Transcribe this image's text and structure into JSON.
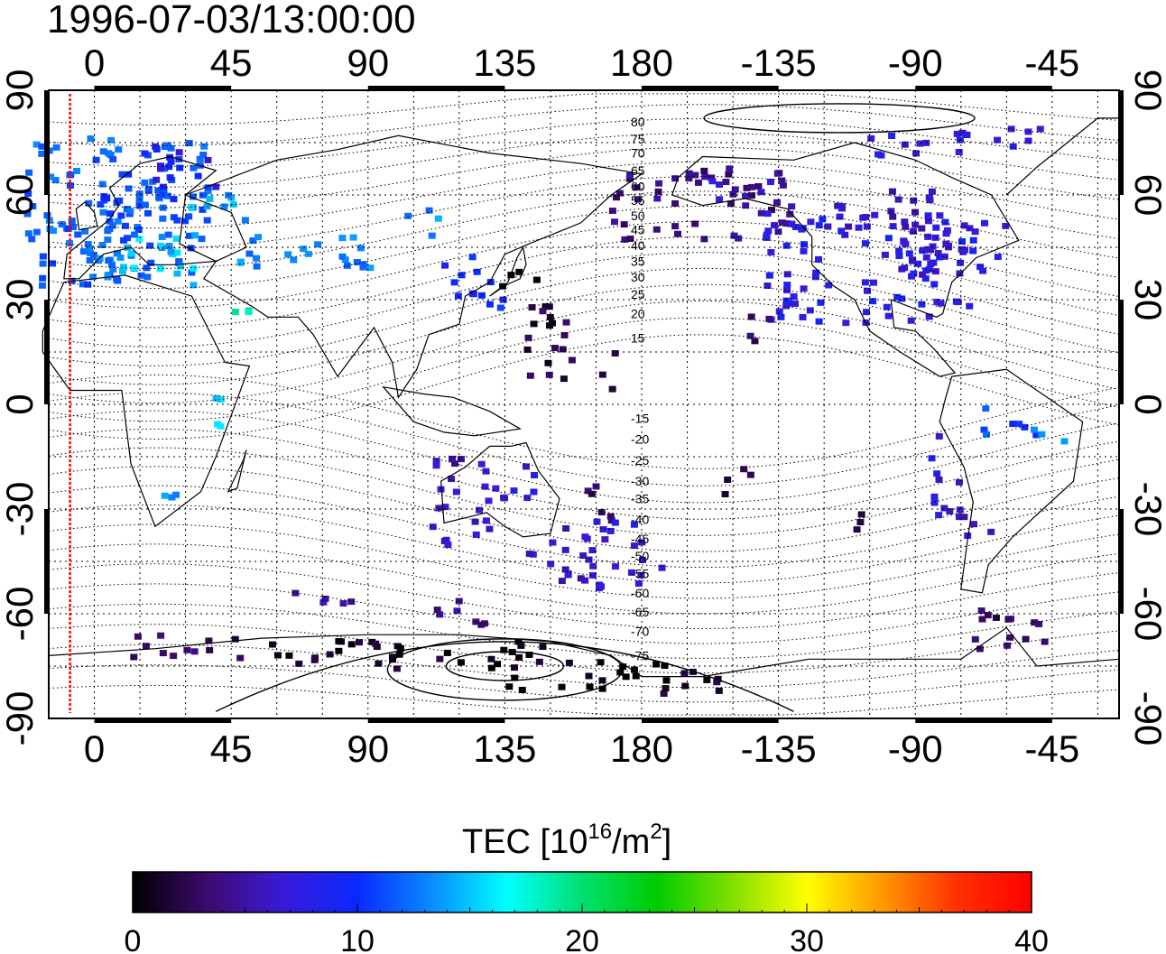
{
  "title": "1996-07-03/13:00:00",
  "colorbar": {
    "label_main": "TEC  [10",
    "label_sup1": "16",
    "label_mid": "/m",
    "label_sup2": "2",
    "label_end": "]",
    "ticks": [
      "0",
      "10",
      "20",
      "30",
      "40"
    ],
    "min": 0,
    "max": 40,
    "colors": [
      "#000000",
      "#3c0a6e",
      "#3a1ad8",
      "#0a28ff",
      "#0a8cff",
      "#00ffff",
      "#00e070",
      "#00cc00",
      "#80e000",
      "#ffff00",
      "#ff9900",
      "#ff3000",
      "#ff0000"
    ]
  },
  "map": {
    "lon_ticks_top": [
      "0",
      "45",
      "90",
      "135",
      "180",
      "-135",
      "-90",
      "-45"
    ],
    "lon_ticks_bottom": [
      "0",
      "45",
      "90",
      "135",
      "180",
      "-135",
      "-90",
      "-45"
    ],
    "lat_ticks": [
      "90",
      "60",
      "30",
      "0",
      "-30",
      "-60",
      "-90"
    ],
    "lon_values": [
      0,
      45,
      90,
      135,
      180,
      225,
      270,
      315
    ],
    "lat_values": [
      90,
      60,
      30,
      0,
      -30,
      -60,
      -90
    ],
    "lon_range": [
      -15,
      337
    ],
    "lat_range": [
      -90,
      90
    ],
    "terminator_lon": -8,
    "mag_lat_labels": [
      {
        "label": "80",
        "lat": 81
      },
      {
        "label": "75",
        "lat": 76
      },
      {
        "label": "70",
        "lat": 72
      },
      {
        "label": "65",
        "lat": 67
      },
      {
        "label": "60",
        "lat": 62.5
      },
      {
        "label": "55",
        "lat": 58.5
      },
      {
        "label": "50",
        "lat": 54
      },
      {
        "label": "45",
        "lat": 50
      },
      {
        "label": "40",
        "lat": 45.5
      },
      {
        "label": "35",
        "lat": 41
      },
      {
        "label": "30",
        "lat": 36.5
      },
      {
        "label": "25",
        "lat": 31.5
      },
      {
        "label": "20",
        "lat": 26
      },
      {
        "label": "15",
        "lat": 19
      },
      {
        "label": "-15",
        "lat": -4
      },
      {
        "label": "-20",
        "lat": -10
      },
      {
        "label": "-25",
        "lat": -16
      },
      {
        "label": "-30",
        "lat": -22
      },
      {
        "label": "-35",
        "lat": -27
      },
      {
        "label": "-40",
        "lat": -33
      },
      {
        "label": "-45",
        "lat": -38.5
      },
      {
        "label": "-50",
        "lat": -43.5
      },
      {
        "label": "-55",
        "lat": -48.5
      },
      {
        "label": "-60",
        "lat": -54
      },
      {
        "label": "-65",
        "lat": -59.5
      },
      {
        "label": "-70",
        "lat": -65
      },
      {
        "label": "-75",
        "lat": -72
      }
    ],
    "tec_patches": [
      {
        "lon": 8,
        "lat": 55,
        "w": 30,
        "h": 22,
        "tec": 12
      },
      {
        "lon": 18,
        "lat": 63,
        "w": 18,
        "h": 12,
        "tec": 11
      },
      {
        "lon": 30,
        "lat": 68,
        "w": 10,
        "h": 6,
        "tec": 8
      },
      {
        "lon": 20,
        "lat": 42,
        "w": 14,
        "h": 8,
        "tec": 15
      },
      {
        "lon": 5,
        "lat": 48,
        "w": 10,
        "h": 8,
        "tec": 13
      },
      {
        "lon": 40,
        "lat": 55,
        "w": 10,
        "h": 5,
        "tec": 14
      },
      {
        "lon": 70,
        "lat": 44,
        "w": 22,
        "h": 6,
        "tec": 13
      },
      {
        "lon": 108,
        "lat": 52,
        "w": 6,
        "h": 4,
        "tec": 13
      },
      {
        "lon": 50,
        "lat": 28,
        "w": 5,
        "h": 4,
        "tec": 19
      },
      {
        "lon": 40,
        "lat": -2,
        "w": 4,
        "h": 6,
        "tec": 15
      },
      {
        "lon": 28,
        "lat": -28,
        "w": 6,
        "h": 3,
        "tec": 13
      },
      {
        "lon": 125,
        "lat": 35,
        "w": 10,
        "h": 8,
        "tec": 10
      },
      {
        "lon": 140,
        "lat": 36,
        "w": 6,
        "h": 4,
        "tec": 1
      },
      {
        "lon": 200,
        "lat": 57,
        "w": 30,
        "h": 10,
        "tec": 4
      },
      {
        "lon": 215,
        "lat": 63,
        "w": 12,
        "h": 5,
        "tec": 6
      },
      {
        "lon": 255,
        "lat": 39,
        "w": 35,
        "h": 16,
        "tec": 8
      },
      {
        "lon": 280,
        "lat": 44,
        "w": 20,
        "h": 8,
        "tec": 7
      },
      {
        "lon": 265,
        "lat": 55,
        "w": 25,
        "h": 6,
        "tec": 6
      },
      {
        "lon": 285,
        "lat": 75,
        "w": 30,
        "h": 4,
        "tec": 7
      },
      {
        "lon": 220,
        "lat": 22,
        "w": 6,
        "h": 4,
        "tec": 3
      },
      {
        "lon": 150,
        "lat": 20,
        "w": 8,
        "h": 14,
        "tec": 2
      },
      {
        "lon": 170,
        "lat": 10,
        "w": 3,
        "h": 6,
        "tec": 2
      },
      {
        "lon": 120,
        "lat": -28,
        "w": 10,
        "h": 14,
        "tec": 6
      },
      {
        "lon": 140,
        "lat": -22,
        "w": 8,
        "h": 6,
        "tec": 7
      },
      {
        "lon": 165,
        "lat": -28,
        "w": 6,
        "h": 6,
        "tec": 3
      },
      {
        "lon": 175,
        "lat": -43,
        "w": 12,
        "h": 10,
        "tec": 7
      },
      {
        "lon": 155,
        "lat": -43,
        "w": 12,
        "h": 8,
        "tec": 6
      },
      {
        "lon": 280,
        "lat": -20,
        "w": 5,
        "h": 12,
        "tec": 7
      },
      {
        "lon": 290,
        "lat": -35,
        "w": 6,
        "h": 6,
        "tec": 6
      },
      {
        "lon": 300,
        "lat": -5,
        "w": 10,
        "h": 4,
        "tec": 11
      },
      {
        "lon": 315,
        "lat": -8,
        "w": 6,
        "h": 3,
        "tec": 13
      },
      {
        "lon": 210,
        "lat": -22,
        "w": 6,
        "h": 4,
        "tec": 2
      },
      {
        "lon": 250,
        "lat": -32,
        "w": 4,
        "h": 4,
        "tec": 3
      },
      {
        "lon": 300,
        "lat": -65,
        "w": 14,
        "h": 6,
        "tec": 3
      },
      {
        "lon": 120,
        "lat": -72,
        "w": 30,
        "h": 4,
        "tec": 1
      },
      {
        "lon": 160,
        "lat": -78,
        "w": 30,
        "h": 4,
        "tec": 0
      },
      {
        "lon": 80,
        "lat": -72,
        "w": 22,
        "h": 4,
        "tec": 1
      },
      {
        "lon": 30,
        "lat": -70,
        "w": 18,
        "h": 4,
        "tec": 3
      },
      {
        "lon": 200,
        "lat": -80,
        "w": 14,
        "h": 4,
        "tec": 1
      },
      {
        "lon": 120,
        "lat": -60,
        "w": 10,
        "h": 4,
        "tec": 4
      },
      {
        "lon": 75,
        "lat": -57,
        "w": 10,
        "h": 3,
        "tec": 5
      }
    ]
  }
}
